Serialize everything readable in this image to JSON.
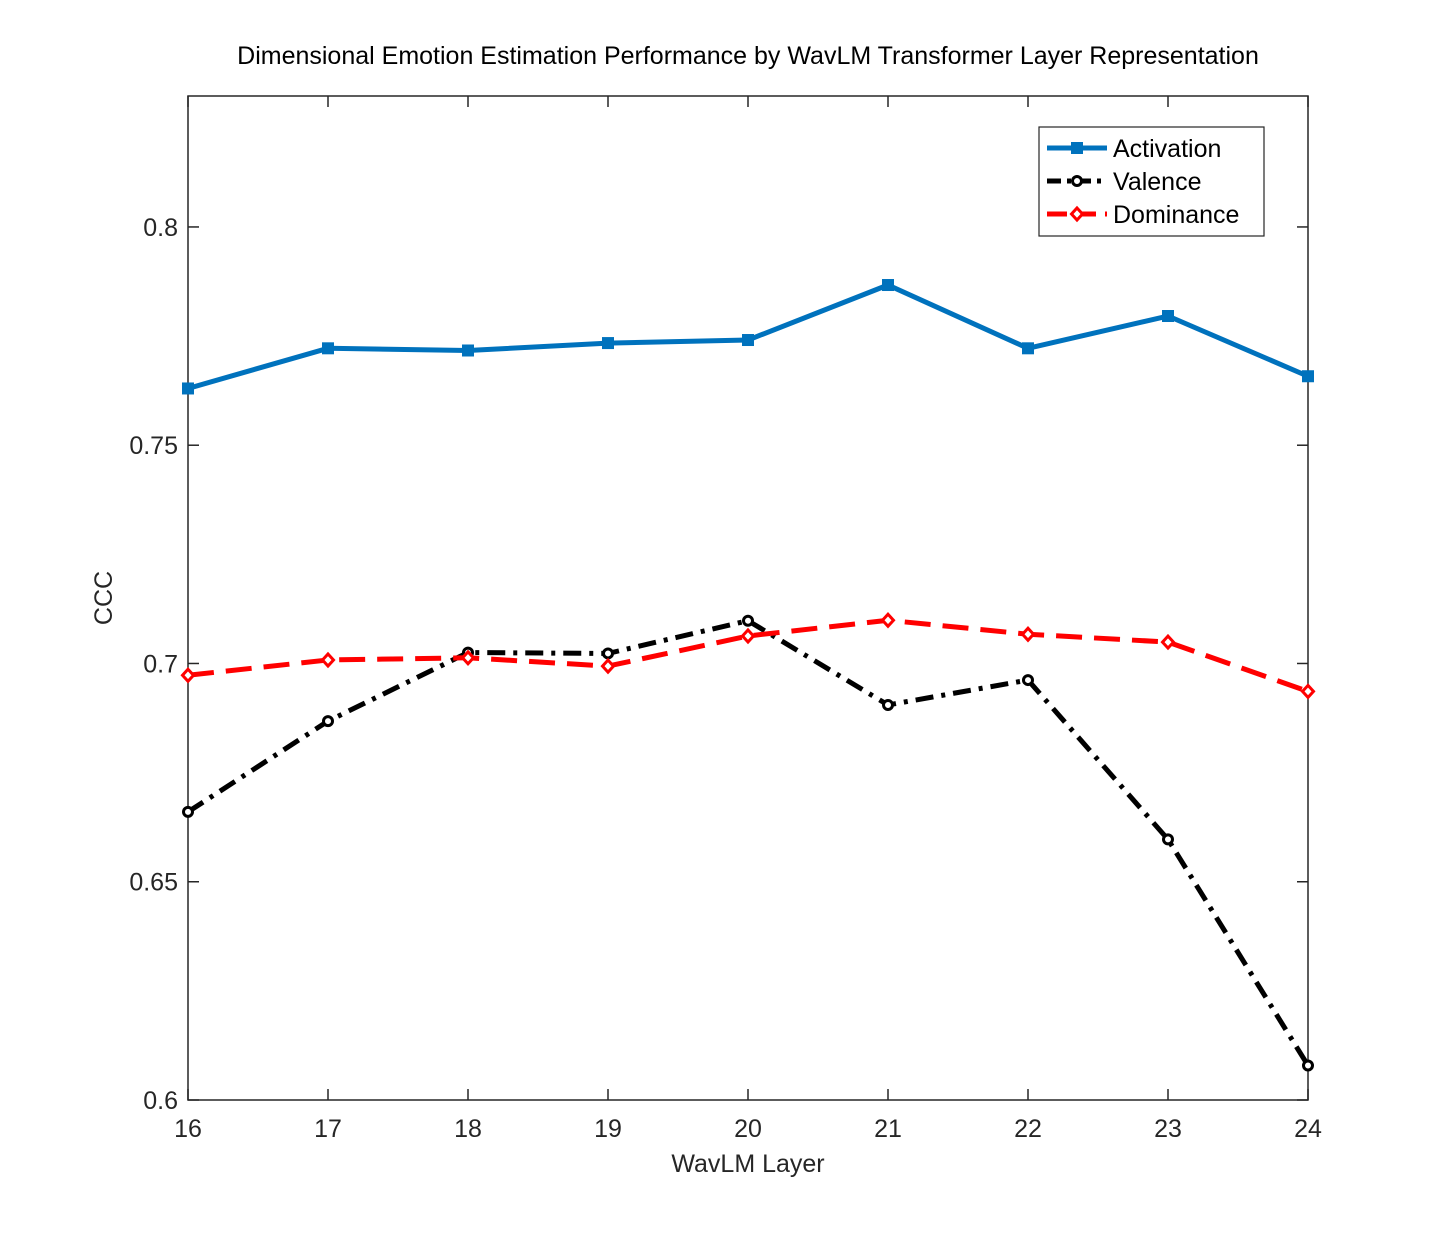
{
  "chart_data": {
    "type": "line",
    "title": "Dimensional Emotion Estimation Performance by WavLM Transformer Layer Representation",
    "xlabel": "WavLM Layer",
    "ylabel": "CCC",
    "x": [
      16,
      17,
      18,
      19,
      20,
      21,
      22,
      23,
      24
    ],
    "xlim": [
      16,
      24
    ],
    "ylim": [
      0.6,
      0.83
    ],
    "xticks": [
      16,
      17,
      18,
      19,
      20,
      21,
      22,
      23,
      24
    ],
    "yticks": [
      0.6,
      0.65,
      0.7,
      0.75,
      0.8
    ],
    "ytick_labels": [
      "0.6",
      "0.65",
      "0.7",
      "0.75",
      "0.8"
    ],
    "grid": false,
    "legend_position": "top-right",
    "series": [
      {
        "name": "Activation",
        "color": "#0072BD",
        "line_style": "solid",
        "marker": "square",
        "values": [
          0.763,
          0.7722,
          0.7717,
          0.7734,
          0.7741,
          0.7867,
          0.7722,
          0.7796,
          0.7658
        ]
      },
      {
        "name": "Valence",
        "color": "#000000",
        "line_style": "dash-dot",
        "marker": "circle",
        "values": [
          0.666,
          0.6868,
          0.7025,
          0.7023,
          0.7098,
          0.6905,
          0.6962,
          0.6597,
          0.6079
        ]
      },
      {
        "name": "Dominance",
        "color": "#FF0000",
        "line_style": "dashed",
        "marker": "diamond",
        "values": [
          0.6973,
          0.7008,
          0.7013,
          0.6994,
          0.7063,
          0.7099,
          0.7067,
          0.7049,
          0.6936
        ]
      }
    ]
  }
}
